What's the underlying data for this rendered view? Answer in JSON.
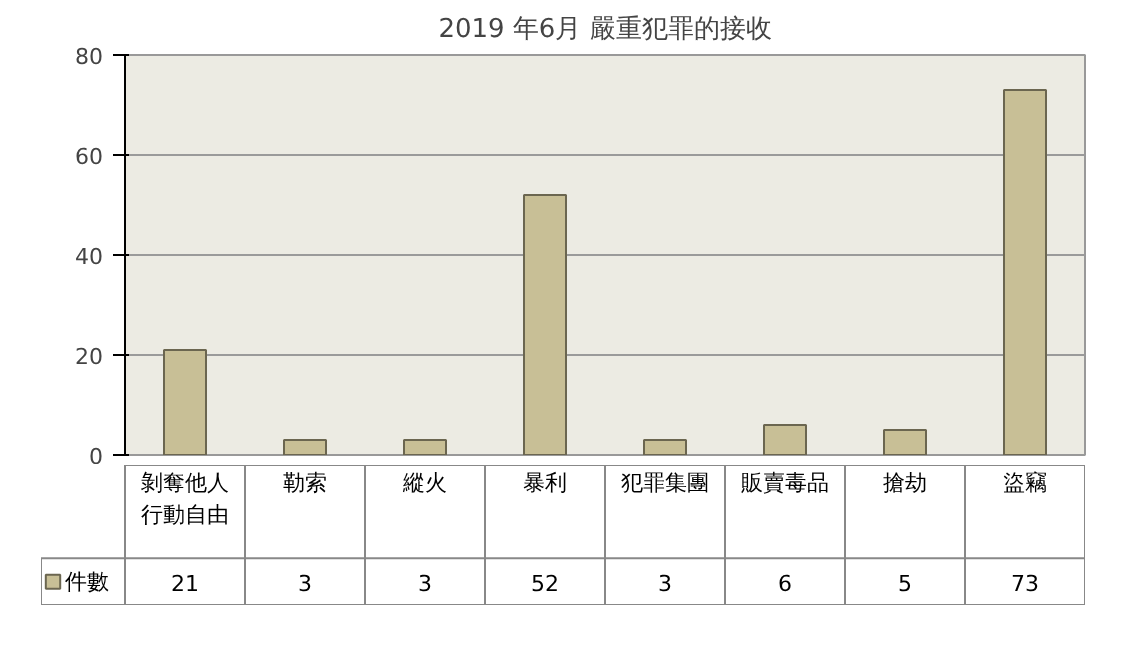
{
  "chart_data": {
    "type": "bar",
    "title": "2019 年6月 嚴重犯罪的接收",
    "categories": [
      "剝奪他人行動自由",
      "勒索",
      "縱火",
      "暴利",
      "犯罪集團",
      "販賣毒品",
      "搶劫",
      "盜竊"
    ],
    "series": [
      {
        "name": "件數",
        "color": "#c8bf96",
        "values": [
          21,
          3,
          3,
          52,
          3,
          6,
          5,
          73
        ]
      }
    ],
    "ylim": [
      0,
      80
    ],
    "yticks": [
      0,
      20,
      40,
      60,
      80
    ],
    "grid": "y",
    "data_labels": true
  }
}
